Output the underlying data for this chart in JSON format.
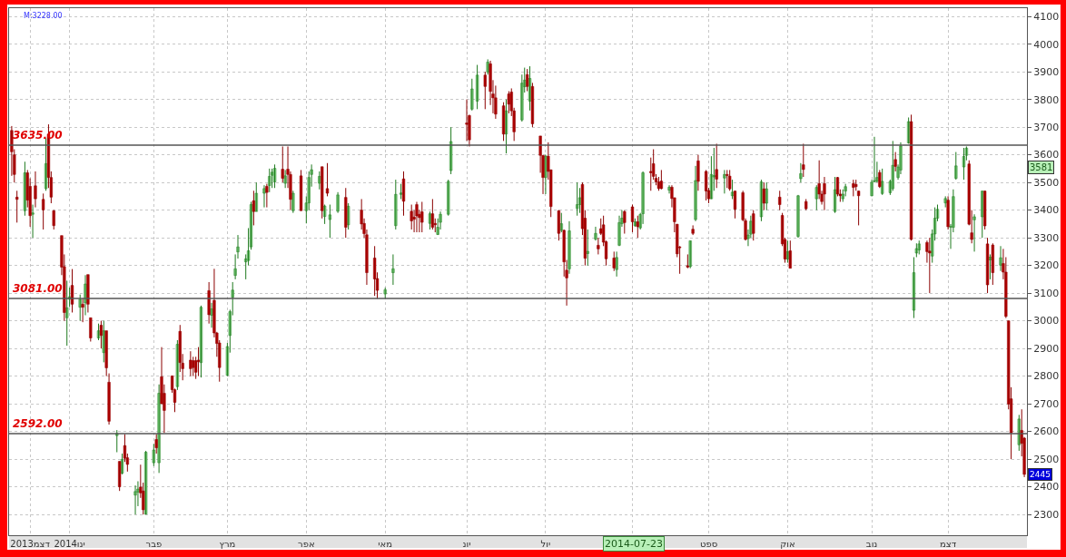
{
  "chart_data": {
    "type": "candlestick",
    "x": [
      "2013-12-10",
      "2013-12-11",
      "2013-12-12",
      "2013-12-15",
      "2013-12-16",
      "2013-12-17",
      "2013-12-18",
      "2013-12-19",
      "2013-12-22",
      "2013-12-23",
      "2013-12-24",
      "2013-12-25",
      "2013-12-26",
      "2013-12-29",
      "2013-12-30",
      "2013-12-31",
      "2014-01-01",
      "2014-01-02",
      "2014-01-05",
      "2014-01-06",
      "2014-01-07",
      "2014-01-08",
      "2014-01-09",
      "2014-01-12",
      "2014-01-13",
      "2014-01-14",
      "2014-01-15",
      "2014-01-16",
      "2014-01-19",
      "2014-01-20",
      "2014-01-21",
      "2014-01-22",
      "2014-01-23",
      "2014-01-26",
      "2014-01-27",
      "2014-01-28",
      "2014-01-29",
      "2014-01-30",
      "2014-02-02",
      "2014-02-03",
      "2014-02-04",
      "2014-02-05",
      "2014-02-06",
      "2014-02-09",
      "2014-02-10",
      "2014-02-11",
      "2014-02-12",
      "2014-02-13",
      "2014-02-16",
      "2014-02-17",
      "2014-02-18",
      "2014-02-19",
      "2014-02-20",
      "2014-02-23",
      "2014-02-24",
      "2014-02-25",
      "2014-02-26",
      "2014-02-27",
      "2014-03-02",
      "2014-03-03",
      "2014-03-04",
      "2014-03-05",
      "2014-03-06",
      "2014-03-09",
      "2014-03-10",
      "2014-03-11",
      "2014-03-12",
      "2014-03-13",
      "2014-03-16",
      "2014-03-17",
      "2014-03-18",
      "2014-03-19",
      "2014-03-20",
      "2014-03-23",
      "2014-03-24",
      "2014-03-25",
      "2014-03-26",
      "2014-03-27",
      "2014-03-30",
      "2014-04-01",
      "2014-04-02",
      "2014-04-03",
      "2014-04-06",
      "2014-04-07",
      "2014-04-08",
      "2014-04-09",
      "2014-04-10",
      "2014-04-13",
      "2014-04-16",
      "2014-04-17",
      "2014-04-22",
      "2014-04-23",
      "2014-04-24",
      "2014-04-27",
      "2014-04-28",
      "2014-05-01",
      "2014-05-04",
      "2014-05-05",
      "2014-05-07",
      "2014-05-08",
      "2014-05-11",
      "2014-05-12",
      "2014-05-13",
      "2014-05-14",
      "2014-05-15",
      "2014-05-18",
      "2014-05-19",
      "2014-05-20",
      "2014-05-21",
      "2014-05-22",
      "2014-05-25",
      "2014-05-26",
      "2014-06-01",
      "2014-06-02",
      "2014-06-03",
      "2014-06-05",
      "2014-06-08",
      "2014-06-09",
      "2014-06-10",
      "2014-06-11",
      "2014-06-12",
      "2014-06-15",
      "2014-06-16",
      "2014-06-17",
      "2014-06-18",
      "2014-06-19",
      "2014-06-22",
      "2014-06-23",
      "2014-06-24",
      "2014-06-25",
      "2014-06-26",
      "2014-06-29",
      "2014-06-30",
      "2014-07-01",
      "2014-07-02",
      "2014-07-03",
      "2014-07-06",
      "2014-07-07",
      "2014-07-08",
      "2014-07-09",
      "2014-07-10",
      "2014-07-13",
      "2014-07-14",
      "2014-07-15",
      "2014-07-16",
      "2014-07-17",
      "2014-07-20",
      "2014-07-21",
      "2014-07-22",
      "2014-07-23",
      "2014-07-24",
      "2014-07-27",
      "2014-07-28",
      "2014-07-29",
      "2014-07-30",
      "2014-07-31",
      "2014-08-03",
      "2014-08-04",
      "2014-08-05",
      "2014-08-06",
      "2014-08-07",
      "2014-08-10",
      "2014-08-11",
      "2014-08-12",
      "2014-08-13",
      "2014-08-14",
      "2014-08-17",
      "2014-08-18",
      "2014-08-19",
      "2014-08-20",
      "2014-08-21",
      "2014-08-24",
      "2014-08-25",
      "2014-08-26",
      "2014-08-27",
      "2014-08-28",
      "2014-08-31",
      "2014-09-01",
      "2014-09-02",
      "2014-09-03",
      "2014-09-04",
      "2014-09-07",
      "2014-09-08",
      "2014-09-09",
      "2014-09-10",
      "2014-09-11",
      "2014-09-14",
      "2014-09-15",
      "2014-09-16",
      "2014-09-17",
      "2014-09-18",
      "2014-09-21",
      "2014-09-22",
      "2014-09-23",
      "2014-09-28",
      "2014-09-29",
      "2014-09-30",
      "2014-10-01",
      "2014-10-02",
      "2014-10-05",
      "2014-10-06",
      "2014-10-07",
      "2014-10-08",
      "2014-10-12",
      "2014-10-13",
      "2014-10-14",
      "2014-10-15",
      "2014-10-19",
      "2014-10-20",
      "2014-10-21",
      "2014-10-22",
      "2014-10-23",
      "2014-10-26",
      "2014-10-27",
      "2014-10-28",
      "2014-11-02",
      "2014-11-03",
      "2014-11-04",
      "2014-11-05",
      "2014-11-06",
      "2014-11-09",
      "2014-11-10",
      "2014-11-11",
      "2014-11-12",
      "2014-11-13",
      "2014-11-16",
      "2014-11-17",
      "2014-11-18",
      "2014-11-19",
      "2014-11-20",
      "2014-11-23",
      "2014-11-24",
      "2014-11-25",
      "2014-11-26",
      "2014-11-27",
      "2014-11-30",
      "2014-12-01",
      "2014-12-02",
      "2014-12-03",
      "2014-12-04",
      "2014-12-07",
      "2014-12-08",
      "2014-12-09",
      "2014-12-10",
      "2014-12-11",
      "2014-12-14",
      "2014-12-15",
      "2014-12-16",
      "2014-12-17",
      "2014-12-18",
      "2014-12-21",
      "2014-12-22",
      "2014-12-23",
      "2014-12-24",
      "2014-12-25",
      "2014-12-28",
      "2014-12-29",
      "2014-12-30"
    ],
    "ohlc": [
      [
        3688,
        3704,
        3524,
        3611
      ],
      [
        3600,
        3620,
        3500,
        3529
      ],
      [
        3447,
        3470,
        3355,
        3439
      ],
      [
        3398,
        3575,
        3380,
        3535
      ],
      [
        3535,
        3545,
        3410,
        3436
      ],
      [
        3486,
        3515,
        3340,
        3380
      ],
      [
        3385,
        3420,
        3300,
        3390
      ],
      [
        3488,
        3540,
        3410,
        3441
      ],
      [
        3439,
        3460,
        3330,
        3401
      ],
      [
        3478,
        3660,
        3470,
        3568
      ],
      [
        3675,
        3710,
        3480,
        3518
      ],
      [
        3518,
        3540,
        3425,
        3447
      ],
      [
        3398,
        3400,
        3330,
        3344
      ],
      [
        3308,
        3308,
        3165,
        3194
      ],
      [
        3196,
        3240,
        3000,
        3030
      ],
      [
        3011,
        3145,
        2910,
        3047
      ],
      [
        3078,
        3120,
        3050,
        3087
      ],
      [
        3128,
        3187,
        3030,
        3060
      ],
      [
        3049,
        3095,
        3000,
        3078
      ],
      [
        3060,
        3080,
        2995,
        3049
      ],
      [
        3065,
        3165,
        3020,
        3133
      ],
      [
        3167,
        3167,
        3030,
        3060
      ],
      [
        3011,
        3011,
        2925,
        2938
      ],
      [
        2938,
        2990,
        2930,
        2964
      ],
      [
        2984,
        3000,
        2900,
        2947
      ],
      [
        2885,
        3000,
        2850,
        2964
      ],
      [
        2964,
        2964,
        2800,
        2830
      ],
      [
        2778,
        2810,
        2625,
        2637
      ],
      [
        2585,
        2605,
        2525,
        2593
      ],
      [
        2492,
        2492,
        2385,
        2400
      ],
      [
        2449,
        2520,
        2445,
        2499
      ],
      [
        2549,
        2590,
        2490,
        2503
      ],
      [
        2505,
        2520,
        2455,
        2481
      ],
      [
        2370,
        2405,
        2300,
        2383
      ],
      [
        2381,
        2420,
        2330,
        2392
      ],
      [
        2399,
        2480,
        2360,
        2378
      ],
      [
        2385,
        2415,
        2300,
        2317
      ],
      [
        2301,
        2530,
        2300,
        2525
      ],
      [
        2487,
        2555,
        2475,
        2533
      ],
      [
        2571,
        2590,
        2520,
        2541
      ],
      [
        2487,
        2770,
        2450,
        2738
      ],
      [
        2798,
        2905,
        2700,
        2700
      ],
      [
        2738,
        2770,
        2595,
        2676
      ],
      [
        2801,
        2801,
        2740,
        2751
      ],
      [
        2751,
        2755,
        2670,
        2705
      ],
      [
        2762,
        2930,
        2750,
        2915
      ],
      [
        2962,
        2985,
        2815,
        2849
      ],
      [
        2847,
        2880,
        2785,
        2827
      ],
      [
        2858,
        2890,
        2800,
        2827
      ],
      [
        2856,
        2870,
        2800,
        2831
      ],
      [
        2856,
        2870,
        2790,
        2814
      ],
      [
        2858,
        2905,
        2800,
        2852
      ],
      [
        2849,
        3055,
        2795,
        3049
      ],
      [
        3109,
        3140,
        2990,
        3022
      ],
      [
        3020,
        3065,
        2975,
        3043
      ],
      [
        3074,
        3188,
        2940,
        2956
      ],
      [
        2956,
        2960,
        2870,
        2918
      ],
      [
        2920,
        2930,
        2780,
        2831
      ],
      [
        2803,
        2920,
        2800,
        2907
      ],
      [
        2947,
        3040,
        2885,
        3033
      ],
      [
        3085,
        3140,
        3020,
        3111
      ],
      [
        3164,
        3240,
        3150,
        3188
      ],
      [
        3249,
        3310,
        3225,
        3267
      ],
      [
        3213,
        3240,
        3150,
        3224
      ],
      [
        3218,
        3335,
        3200,
        3253
      ],
      [
        3267,
        3430,
        3257,
        3420
      ],
      [
        3434,
        3470,
        3345,
        3395
      ],
      [
        3395,
        3500,
        3395,
        3461
      ],
      [
        3461,
        3490,
        3410,
        3478
      ],
      [
        3486,
        3495,
        3410,
        3464
      ],
      [
        3489,
        3550,
        3465,
        3522
      ],
      [
        3526,
        3550,
        3480,
        3537
      ],
      [
        3502,
        3565,
        3480,
        3551
      ],
      [
        3548,
        3630,
        3500,
        3515
      ],
      [
        3497,
        3545,
        3480,
        3524
      ],
      [
        3548,
        3630,
        3480,
        3529
      ],
      [
        3529,
        3540,
        3400,
        3439
      ],
      [
        3398,
        3470,
        3390,
        3461
      ],
      [
        3524,
        3545,
        3398,
        3398
      ],
      [
        3398,
        3450,
        3352,
        3426
      ],
      [
        3426,
        3540,
        3400,
        3518
      ],
      [
        3529,
        3565,
        3485,
        3546
      ],
      [
        3497,
        3540,
        3475,
        3522
      ],
      [
        3557,
        3557,
        3370,
        3398
      ],
      [
        3377,
        3420,
        3350,
        3415
      ],
      [
        3478,
        3570,
        3450,
        3461
      ],
      [
        3366,
        3420,
        3300,
        3383
      ],
      [
        3396,
        3465,
        3390,
        3455
      ],
      [
        3446,
        3480,
        3300,
        3338
      ],
      [
        3347,
        3425,
        3330,
        3414
      ],
      [
        3400,
        3440,
        3330,
        3350
      ],
      [
        3352,
        3370,
        3300,
        3315
      ],
      [
        3311,
        3330,
        3130,
        3174
      ],
      [
        3227,
        3270,
        3090,
        3151
      ],
      [
        3153,
        3175,
        3080,
        3110
      ],
      [
        3097,
        3120,
        3080,
        3112
      ],
      [
        3174,
        3240,
        3130,
        3188
      ],
      [
        3344,
        3510,
        3330,
        3457
      ],
      [
        3457,
        3495,
        3440,
        3462
      ],
      [
        3513,
        3540,
        3380,
        3432
      ],
      [
        3396,
        3420,
        3330,
        3361
      ],
      [
        3375,
        3400,
        3320,
        3367
      ],
      [
        3420,
        3430,
        3320,
        3379
      ],
      [
        3385,
        3400,
        3320,
        3373
      ],
      [
        3394,
        3430,
        3320,
        3356
      ],
      [
        3352,
        3395,
        3330,
        3387
      ],
      [
        3387,
        3440,
        3330,
        3338
      ],
      [
        3352,
        3370,
        3320,
        3347
      ],
      [
        3312,
        3370,
        3310,
        3338
      ],
      [
        3356,
        3395,
        3330,
        3385
      ],
      [
        3385,
        3510,
        3380,
        3504
      ],
      [
        3543,
        3700,
        3530,
        3648
      ],
      [
        3715,
        3800,
        3650,
        3710
      ],
      [
        3742,
        3745,
        3630,
        3654
      ],
      [
        3765,
        3875,
        3760,
        3838
      ],
      [
        3794,
        3925,
        3765,
        3888
      ],
      [
        3888,
        3900,
        3765,
        3847
      ],
      [
        3899,
        3945,
        3890,
        3935
      ],
      [
        3929,
        3940,
        3780,
        3829
      ],
      [
        3820,
        3870,
        3750,
        3806
      ],
      [
        3806,
        3850,
        3730,
        3747
      ],
      [
        3777,
        3790,
        3650,
        3675
      ],
      [
        3675,
        3800,
        3605,
        3759
      ],
      [
        3820,
        3830,
        3750,
        3783
      ],
      [
        3827,
        3840,
        3740,
        3759
      ],
      [
        3759,
        3770,
        3650,
        3683
      ],
      [
        3726,
        3890,
        3720,
        3859
      ],
      [
        3846,
        3915,
        3825,
        3870
      ],
      [
        3890,
        3910,
        3830,
        3847
      ],
      [
        3794,
        3920,
        3760,
        3876
      ],
      [
        3847,
        3860,
        3700,
        3712
      ],
      [
        3668,
        3668,
        3535,
        3598
      ],
      [
        3598,
        3598,
        3458,
        3518
      ],
      [
        3518,
        3600,
        3458,
        3595
      ],
      [
        3595,
        3645,
        3510,
        3540
      ],
      [
        3546,
        3546,
        3375,
        3413
      ],
      [
        3398,
        3400,
        3290,
        3316
      ],
      [
        3327,
        3390,
        3320,
        3351
      ],
      [
        3327,
        3330,
        3160,
        3213
      ],
      [
        3183,
        3220,
        3055,
        3155
      ],
      [
        3188,
        3360,
        3170,
        3325
      ],
      [
        3406,
        3500,
        3380,
        3420
      ],
      [
        3420,
        3480,
        3390,
        3445
      ],
      [
        3493,
        3500,
        3310,
        3333
      ],
      [
        3371,
        3400,
        3200,
        3226
      ],
      [
        3243,
        3330,
        3200,
        3251
      ],
      [
        3295,
        3340,
        3290,
        3316
      ],
      [
        3273,
        3300,
        3240,
        3260
      ],
      [
        3333,
        3370,
        3310,
        3316
      ],
      [
        3347,
        3380,
        3270,
        3284
      ],
      [
        3286,
        3290,
        3200,
        3224
      ],
      [
        3227,
        3250,
        3180,
        3191
      ],
      [
        3185,
        3250,
        3160,
        3229
      ],
      [
        3273,
        3380,
        3270,
        3355
      ],
      [
        3351,
        3400,
        3340,
        3371
      ],
      [
        3395,
        3400,
        3315,
        3355
      ],
      [
        3412,
        3420,
        3320,
        3358
      ],
      [
        3344,
        3370,
        3340,
        3358
      ],
      [
        3358,
        3380,
        3300,
        3340
      ],
      [
        3336,
        3390,
        3330,
        3384
      ],
      [
        3387,
        3540,
        3350,
        3535
      ],
      [
        3540,
        3590,
        3470,
        3535
      ],
      [
        3568,
        3620,
        3510,
        3522
      ],
      [
        3515,
        3530,
        3490,
        3502
      ],
      [
        3502,
        3520,
        3470,
        3478
      ],
      [
        3505,
        3545,
        3475,
        3478
      ],
      [
        3472,
        3490,
        3460,
        3483
      ],
      [
        3483,
        3490,
        3410,
        3442
      ],
      [
        3445,
        3445,
        3320,
        3358
      ],
      [
        3349,
        3350,
        3230,
        3242
      ],
      [
        3267,
        3270,
        3170,
        3264
      ],
      [
        3199,
        3240,
        3190,
        3194
      ],
      [
        3196,
        3290,
        3190,
        3289
      ],
      [
        3331,
        3345,
        3310,
        3316
      ],
      [
        3366,
        3560,
        3360,
        3507
      ],
      [
        3578,
        3600,
        3470,
        3504
      ],
      [
        3540,
        3545,
        3435,
        3469
      ],
      [
        3471,
        3480,
        3425,
        3441
      ],
      [
        3441,
        3595,
        3440,
        3529
      ],
      [
        3520,
        3625,
        3470,
        3525
      ],
      [
        3547,
        3640,
        3480,
        3512
      ],
      [
        3516,
        3545,
        3460,
        3529
      ],
      [
        3529,
        3545,
        3480,
        3525
      ],
      [
        3523,
        3545,
        3470,
        3477
      ],
      [
        3452,
        3510,
        3440,
        3465
      ],
      [
        3469,
        3470,
        3370,
        3403
      ],
      [
        3463,
        3470,
        3360,
        3365
      ],
      [
        3362,
        3370,
        3290,
        3294
      ],
      [
        3297,
        3330,
        3270,
        3310
      ],
      [
        3313,
        3380,
        3300,
        3360
      ],
      [
        3387,
        3400,
        3290,
        3316
      ],
      [
        3376,
        3510,
        3360,
        3502
      ],
      [
        3477,
        3500,
        3400,
        3425
      ],
      [
        3425,
        3500,
        3400,
        3477
      ],
      [
        3447,
        3470,
        3400,
        3420
      ],
      [
        3381,
        3390,
        3270,
        3278
      ],
      [
        3294,
        3300,
        3210,
        3223
      ],
      [
        3223,
        3290,
        3210,
        3250
      ],
      [
        3253,
        3290,
        3190,
        3190
      ],
      [
        3305,
        3455,
        3300,
        3452
      ],
      [
        3514,
        3570,
        3500,
        3532
      ],
      [
        3564,
        3640,
        3520,
        3547
      ],
      [
        3431,
        3440,
        3400,
        3405
      ],
      [
        3441,
        3490,
        3400,
        3482
      ],
      [
        3496,
        3580,
        3440,
        3458
      ],
      [
        3458,
        3470,
        3420,
        3431
      ],
      [
        3496,
        3520,
        3400,
        3458
      ],
      [
        3395,
        3520,
        3390,
        3474
      ],
      [
        3518,
        3520,
        3450,
        3458
      ],
      [
        3458,
        3475,
        3430,
        3452
      ],
      [
        3441,
        3475,
        3430,
        3458
      ],
      [
        3469,
        3495,
        3450,
        3485
      ],
      [
        3496,
        3510,
        3450,
        3482
      ],
      [
        3493,
        3510,
        3470,
        3485
      ],
      [
        3469,
        3470,
        3345,
        3452
      ],
      [
        3452,
        3510,
        3450,
        3501
      ],
      [
        3503,
        3665,
        3500,
        3507
      ],
      [
        3504,
        3575,
        3500,
        3518
      ],
      [
        3536,
        3545,
        3480,
        3485
      ],
      [
        3460,
        3550,
        3455,
        3504
      ],
      [
        3463,
        3510,
        3455,
        3504
      ],
      [
        3478,
        3650,
        3470,
        3562
      ],
      [
        3583,
        3610,
        3540,
        3558
      ],
      [
        3518,
        3565,
        3510,
        3556
      ],
      [
        3545,
        3645,
        3530,
        3632
      ],
      [
        3643,
        3735,
        3640,
        3720
      ],
      [
        3720,
        3745,
        3290,
        3294
      ],
      [
        3038,
        3230,
        3010,
        3174
      ],
      [
        3245,
        3280,
        3230,
        3261
      ],
      [
        3256,
        3290,
        3240,
        3278
      ],
      [
        3283,
        3290,
        3210,
        3250
      ],
      [
        3252,
        3300,
        3100,
        3245
      ],
      [
        3234,
        3330,
        3210,
        3314
      ],
      [
        3314,
        3410,
        3290,
        3371
      ],
      [
        3371,
        3420,
        3360,
        3403
      ],
      [
        3426,
        3450,
        3410,
        3442
      ],
      [
        3436,
        3450,
        3330,
        3340
      ],
      [
        3338,
        3350,
        3260,
        3342
      ],
      [
        3338,
        3475,
        3320,
        3449
      ],
      [
        3515,
        3610,
        3510,
        3560
      ],
      [
        3556,
        3625,
        3510,
        3594
      ],
      [
        3598,
        3630,
        3580,
        3624
      ],
      [
        3567,
        3580,
        3345,
        3349
      ],
      [
        3318,
        3400,
        3280,
        3294
      ],
      [
        3365,
        3385,
        3250,
        3376
      ],
      [
        3376,
        3470,
        3300,
        3469
      ],
      [
        3469,
        3470,
        3330,
        3343
      ],
      [
        3278,
        3300,
        3100,
        3130
      ],
      [
        3220,
        3240,
        3150,
        3230
      ],
      [
        3274,
        3280,
        3130,
        3174
      ],
      [
        3201,
        3270,
        3180,
        3228
      ],
      [
        3207,
        3260,
        3150,
        3176
      ],
      [
        3176,
        3230,
        3010,
        3016
      ],
      [
        3000,
        3000,
        2680,
        2699
      ],
      [
        2718,
        2760,
        2500,
        2595
      ],
      [
        2552,
        2660,
        2530,
        2645
      ],
      [
        2604,
        2680,
        2510,
        2557
      ],
      [
        2576,
        2580,
        2435,
        2445
      ]
    ],
    "xlim": [
      "2013-12-09",
      "2014-12-31"
    ],
    "xticks": [
      {
        "value": "2013-12-17",
        "label": "2013דצמ"
      },
      {
        "value": "2014-01-01",
        "label": "2014ינו"
      },
      {
        "value": "2014-02-02",
        "label": "פבר"
      },
      {
        "value": "2014-03-02",
        "label": "מרץ"
      },
      {
        "value": "2014-04-01",
        "label": "אפר"
      },
      {
        "value": "2014-05-01",
        "label": "מאי"
      },
      {
        "value": "2014-06-01",
        "label": "יונ"
      },
      {
        "value": "2014-07-01",
        "label": "יול"
      },
      {
        "value": "2014-08-03",
        "label": null
      },
      {
        "value": "2014-09-01",
        "label": "ספט"
      },
      {
        "value": "2014-10-01",
        "label": "אוק"
      },
      {
        "value": "2014-11-02",
        "label": "נוב"
      },
      {
        "value": "2014-12-01",
        "label": "דצמ"
      }
    ],
    "ylim": [
      2225,
      4130
    ],
    "yticks": [
      2300,
      2400,
      2500,
      2600,
      2700,
      2800,
      2900,
      3000,
      3100,
      3200,
      3300,
      3400,
      3500,
      3600,
      3700,
      3800,
      3900,
      4000,
      4100
    ],
    "grid": true,
    "legend": false,
    "ref_lines": [
      {
        "axis": "y",
        "value": 3635,
        "label": "3635.00",
        "color": "#555555"
      },
      {
        "axis": "y",
        "value": 3081,
        "label": "3081.00",
        "color": "#555555"
      },
      {
        "axis": "y",
        "value": 2592,
        "label": "2592.00",
        "color": "#555555"
      }
    ],
    "annotations": [
      "M:3228.00",
      "3581",
      "2445",
      "2014-07-23"
    ]
  }
}
